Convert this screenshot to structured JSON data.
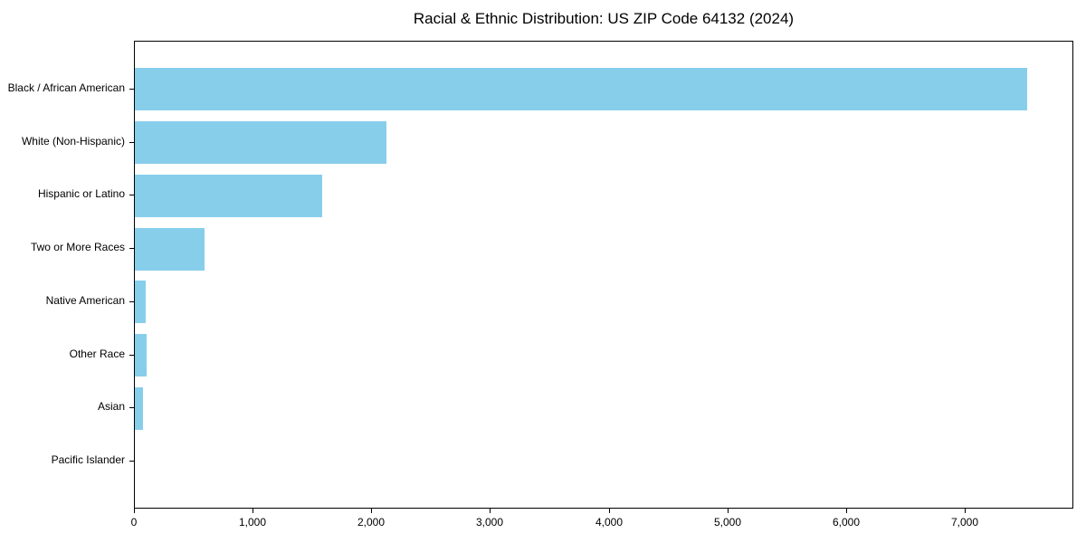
{
  "chart_data": {
    "type": "bar",
    "orientation": "horizontal",
    "title": "Racial & Ethnic Distribution: US ZIP Code 64132 (2024)",
    "categories": [
      "Black / African American",
      "White (Non-Hispanic)",
      "Hispanic or Latino",
      "Two or More Races",
      "Native American",
      "Other Race",
      "Asian",
      "Pacific Islander"
    ],
    "values": [
      7520,
      2120,
      1580,
      585,
      95,
      100,
      70,
      0
    ],
    "xlabel": "",
    "ylabel": "",
    "xlim": [
      0,
      7900
    ],
    "xticks": [
      0,
      1000,
      2000,
      3000,
      4000,
      5000,
      6000,
      7000
    ],
    "xtick_labels": [
      "0",
      "1,000",
      "2,000",
      "3,000",
      "4,000",
      "5,000",
      "6,000",
      "7,000"
    ],
    "grid": false,
    "legend": null,
    "colors": {
      "bar": "#87CEEB",
      "axis": "#000000",
      "background": "#FFFFFF",
      "text": "#000000"
    }
  }
}
